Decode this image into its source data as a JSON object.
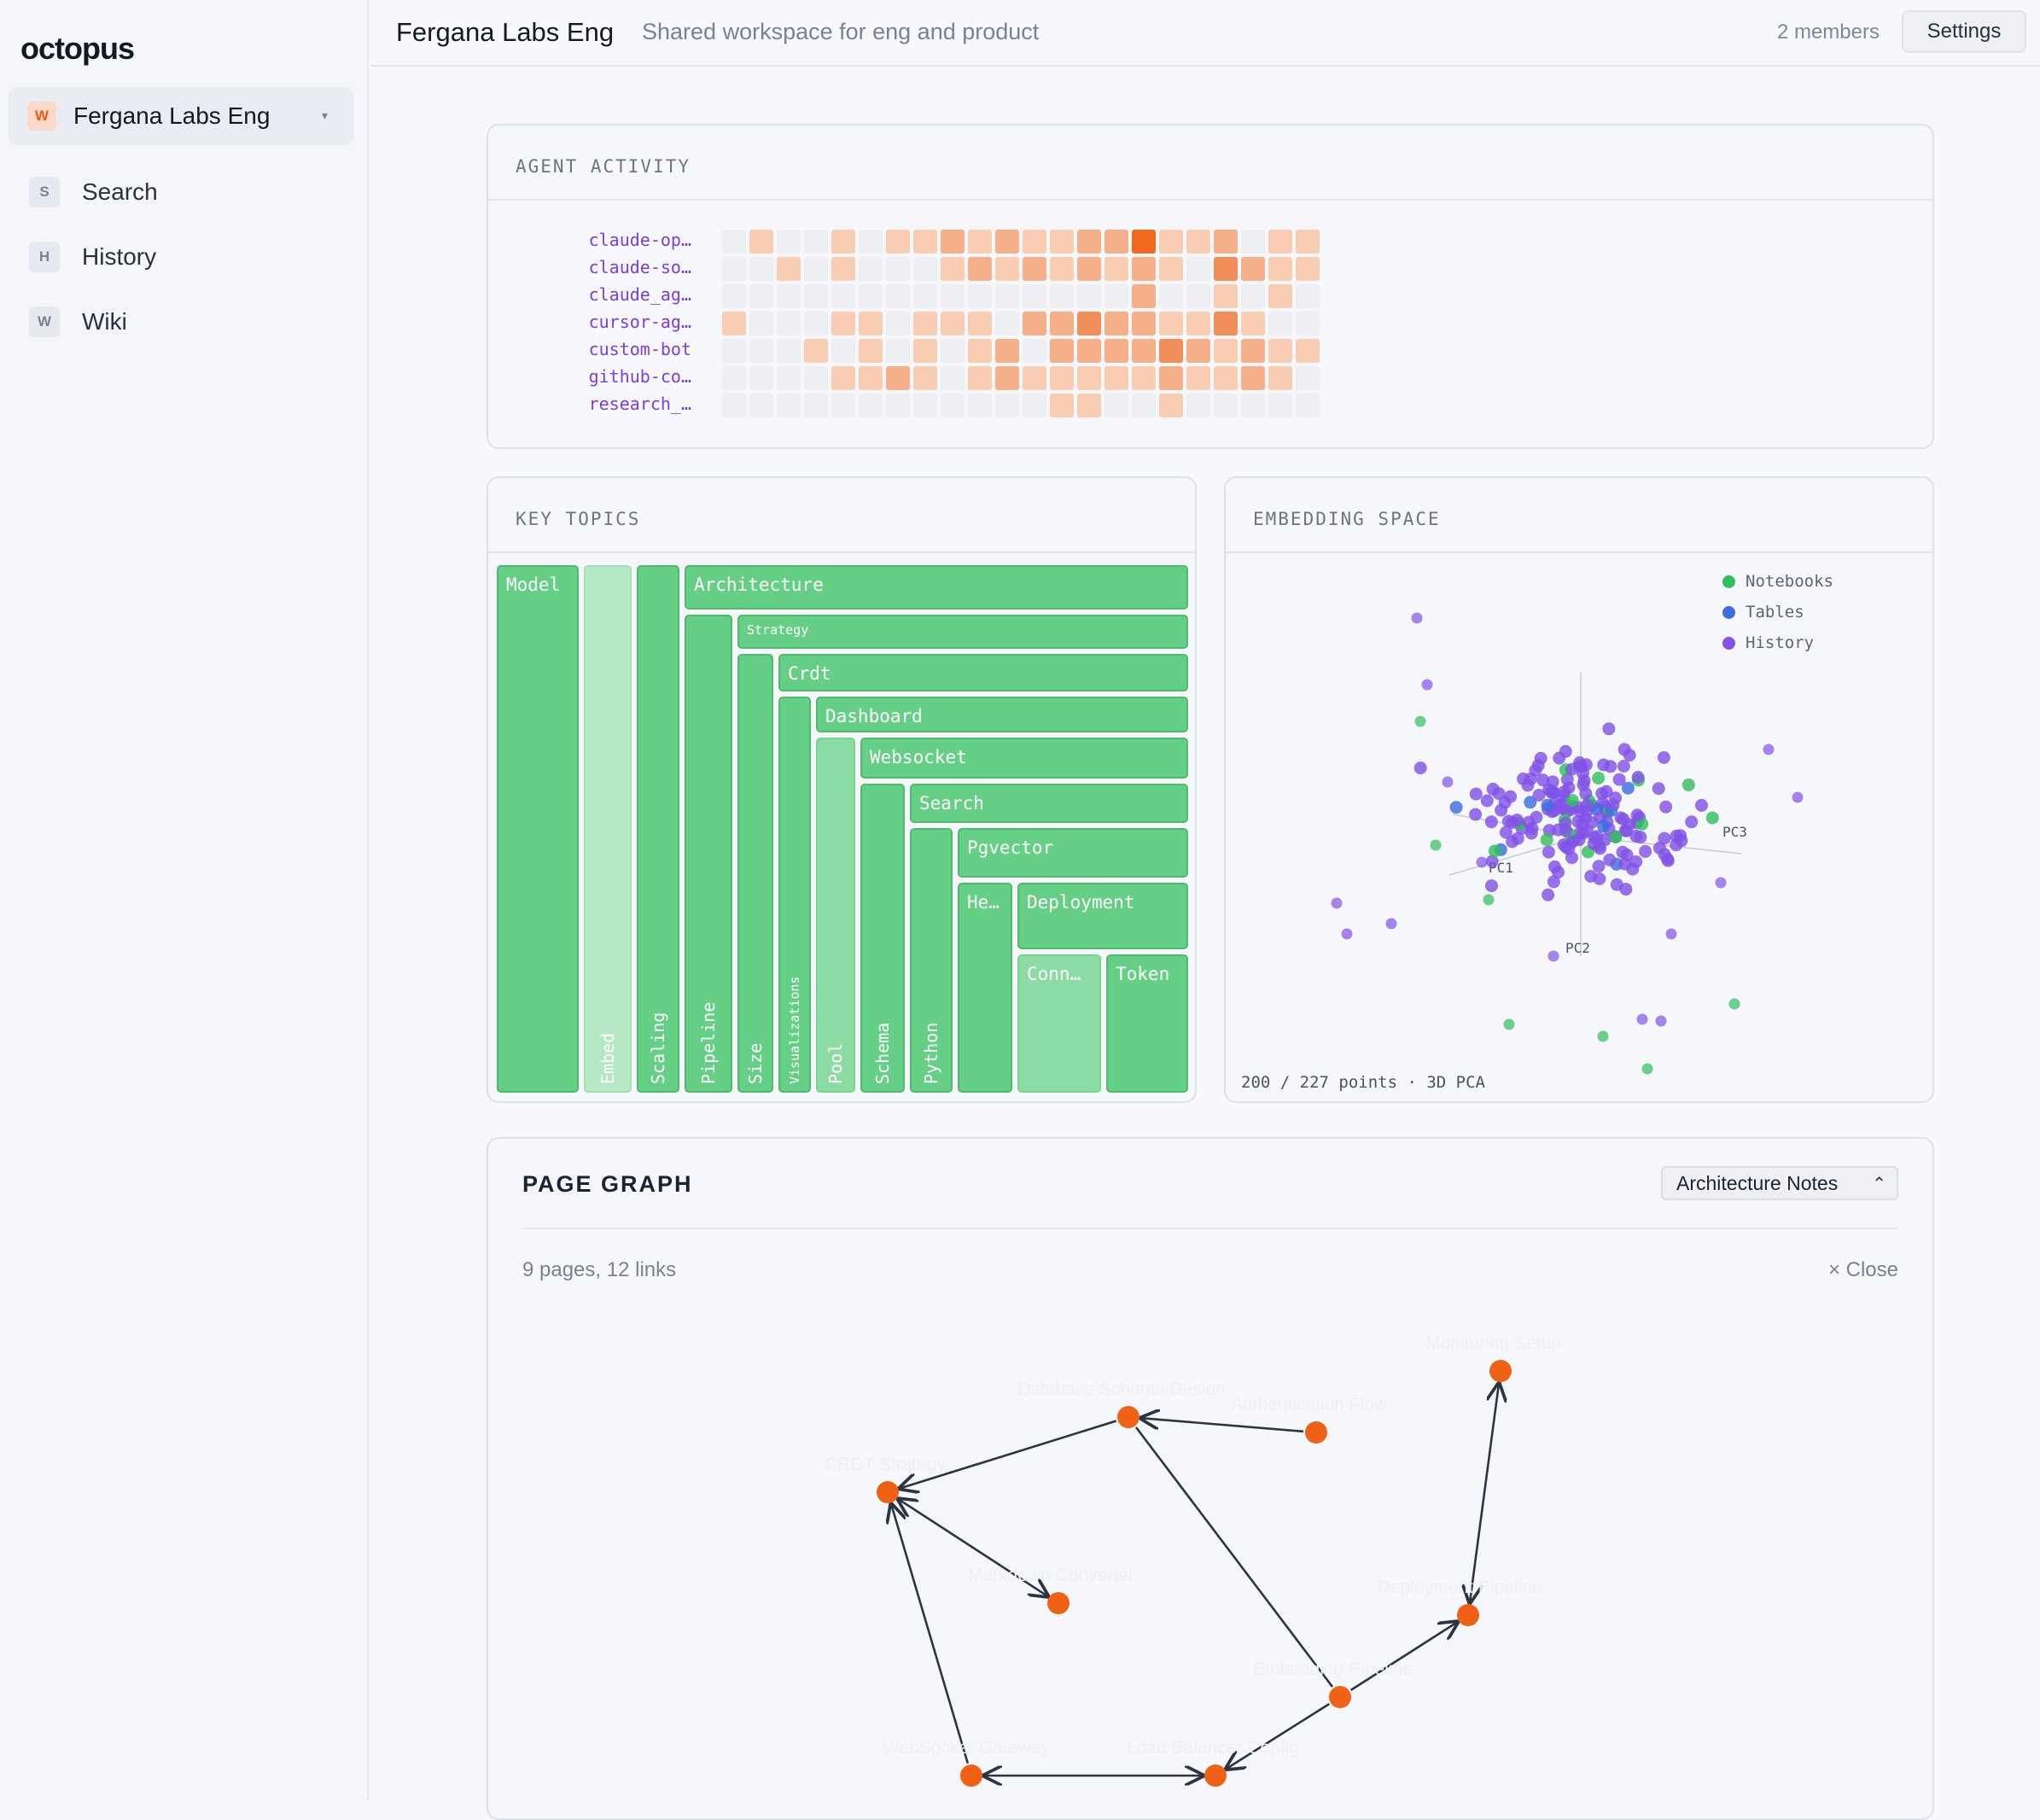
{
  "app": {
    "name": "octopus"
  },
  "workspace": {
    "badge": "W",
    "name": "Fergana Labs Eng",
    "caret": "▾"
  },
  "nav": [
    {
      "badge": "S",
      "label": "Search"
    },
    {
      "badge": "H",
      "label": "History"
    },
    {
      "badge": "W",
      "label": "Wiki"
    }
  ],
  "header": {
    "title": "Fergana Labs Eng",
    "subtitle": "Shared workspace for eng and product",
    "members": "2 members",
    "settings_label": "Settings"
  },
  "agent_activity": {
    "title": "AGENT ACTIVITY",
    "agents": [
      "claude-op…",
      "claude-so…",
      "claude_ag…",
      "cursor-ag…",
      "custom-bot",
      "github-co…",
      "research_…"
    ],
    "colors": [
      "#eeeff2",
      "#f8cdb1",
      "#f5b08a",
      "#f08f59",
      "#f1691c"
    ],
    "levels": [
      [
        0,
        1,
        0,
        0,
        1,
        0,
        1,
        1,
        2,
        1,
        2,
        1,
        1,
        2,
        2,
        4,
        1,
        1,
        2,
        0,
        1,
        1
      ],
      [
        0,
        0,
        1,
        0,
        1,
        0,
        0,
        0,
        1,
        2,
        1,
        2,
        1,
        2,
        1,
        2,
        1,
        0,
        3,
        2,
        1,
        1
      ],
      [
        0,
        0,
        0,
        0,
        0,
        0,
        0,
        0,
        0,
        0,
        0,
        0,
        0,
        0,
        0,
        2,
        0,
        0,
        1,
        0,
        1,
        0
      ],
      [
        1,
        0,
        0,
        0,
        1,
        1,
        0,
        1,
        1,
        1,
        0,
        2,
        2,
        3,
        2,
        2,
        1,
        1,
        3,
        1,
        0,
        0
      ],
      [
        0,
        0,
        0,
        1,
        0,
        1,
        0,
        1,
        0,
        1,
        2,
        0,
        2,
        2,
        2,
        2,
        3,
        2,
        1,
        2,
        1,
        1
      ],
      [
        0,
        0,
        0,
        0,
        1,
        1,
        2,
        1,
        0,
        1,
        2,
        1,
        1,
        1,
        1,
        1,
        2,
        1,
        1,
        2,
        1,
        0
      ],
      [
        0,
        0,
        0,
        0,
        0,
        0,
        0,
        0,
        0,
        0,
        0,
        0,
        1,
        1,
        0,
        0,
        1,
        0,
        0,
        0,
        0,
        0
      ]
    ]
  },
  "key_topics": {
    "title": "KEY TOPICS",
    "items": [
      "Model",
      "Embed",
      "Scaling",
      "Architecture",
      "Pipeline",
      "Strategy",
      "Size",
      "Crdt",
      "Visualizations",
      "Dashboard",
      "Pool",
      "Websocket",
      "Schema",
      "Search",
      "Python",
      "Pgvector",
      "He…",
      "Deployment",
      "Conn…",
      "Token"
    ]
  },
  "embedding_space": {
    "title": "EMBEDDING SPACE",
    "legend": [
      {
        "label": "Notebooks",
        "color": "#2fbf5e"
      },
      {
        "label": "Tables",
        "color": "#3b6fe0"
      },
      {
        "label": "History",
        "color": "#8153e6"
      }
    ],
    "axes": [
      "PC1",
      "PC2",
      "PC3"
    ],
    "footer": "200 / 227 points · 3D PCA"
  },
  "page_graph": {
    "title": "PAGE GRAPH",
    "selected": "Architecture Notes",
    "count": "9 pages, 12 links",
    "close_label": "× Close",
    "node_color": "#ef6216",
    "nodes": [
      "Database Schema Design",
      "Authentication Flow",
      "CRDT Strategy",
      "Markdown Converter",
      "Monitoring Setup",
      "Deployment Pipeline",
      "Embedding Pipeline",
      "WebSocket Gateway",
      "Load Balancer Config"
    ]
  }
}
